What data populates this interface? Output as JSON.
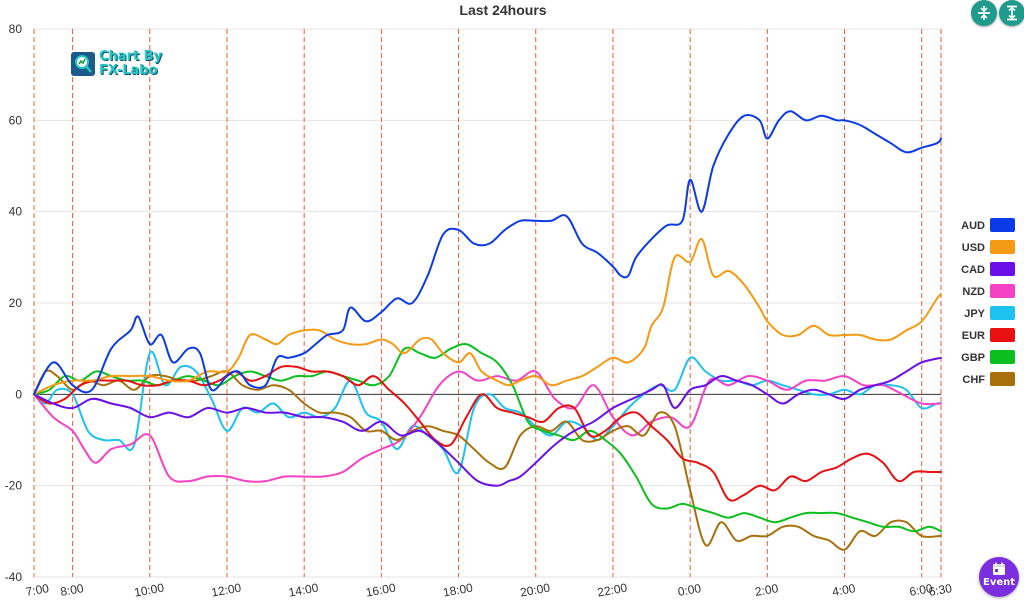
{
  "toolbar": {
    "collapse_icon": "collapse-vertical-icon",
    "expand_icon": "expand-vertical-icon",
    "event_icon": "calendar-icon",
    "event_label": "Event",
    "accent": "#1f9a8c",
    "event_color": "#7b2ee0"
  },
  "watermark": {
    "line1": "Chart By",
    "line2": "FX-Labo"
  },
  "chart_data": {
    "type": "line",
    "title": "Last 24hours",
    "xlabel": "",
    "ylabel": "",
    "ylim": [
      -40,
      80
    ],
    "yticks": [
      80,
      60,
      40,
      20,
      0,
      -20,
      -40
    ],
    "xlim": [
      0,
      23.5
    ],
    "x_tick_labels": [
      "7:00",
      "8:00",
      "10:00",
      "12:00",
      "14:00",
      "16:00",
      "18:00",
      "20:00",
      "22:00",
      "0:00",
      "2:00",
      "4:00",
      "6:00",
      "6:30"
    ],
    "x_tick_hours": [
      0,
      1,
      3,
      5,
      7,
      9,
      11,
      13,
      15,
      17,
      19,
      21,
      23,
      23.5
    ],
    "legend_position": "right",
    "series": [
      {
        "name": "AUD",
        "color": "#0b3be8",
        "x": [
          0,
          0.5,
          1,
          1.5,
          2,
          2.5,
          2.7,
          3,
          3.3,
          3.6,
          4,
          4.3,
          4.6,
          5,
          5.3,
          5.6,
          6,
          6.3,
          6.6,
          7,
          7.3,
          7.6,
          8,
          8.2,
          8.6,
          9,
          9.4,
          9.8,
          10.2,
          10.6,
          11,
          11.4,
          11.8,
          12.2,
          12.6,
          13,
          13.4,
          13.8,
          14.2,
          14.6,
          15,
          15.2,
          15.4,
          15.6,
          16,
          16.4,
          16.8,
          17,
          17.3,
          17.6,
          18,
          18.4,
          18.8,
          19,
          19.3,
          19.6,
          20,
          20.4,
          20.8,
          21,
          21.4,
          21.8,
          22.2,
          22.6,
          23,
          23.4,
          23.5
        ],
        "y": [
          0,
          7,
          2,
          1,
          10,
          14,
          17,
          11,
          13,
          7,
          10,
          9,
          1,
          4,
          5,
          2,
          2,
          8,
          8,
          9,
          11,
          13,
          14,
          19,
          16,
          18,
          21,
          20,
          26,
          35,
          36,
          33,
          33,
          36,
          38,
          38,
          38,
          39,
          33,
          31,
          28,
          26,
          26,
          30,
          34,
          37,
          38,
          47,
          40,
          50,
          57,
          61,
          60,
          56,
          60,
          62,
          60,
          61,
          60,
          60,
          59,
          57,
          55,
          53,
          54,
          55,
          56
        ]
      },
      {
        "name": "USD",
        "color": "#f59a14",
        "x": [
          0,
          0.5,
          1,
          1.5,
          2,
          2.5,
          3,
          3.5,
          4,
          4.5,
          5,
          5.3,
          5.6,
          6,
          6.3,
          6.6,
          7,
          7.4,
          7.8,
          8.2,
          8.6,
          9,
          9.3,
          9.6,
          10,
          10.3,
          10.6,
          11,
          11.3,
          11.6,
          12,
          12.3,
          12.6,
          13,
          13.4,
          13.8,
          14.2,
          14.6,
          15,
          15.4,
          15.8,
          16,
          16.3,
          16.6,
          17,
          17.3,
          17.6,
          18,
          18.4,
          18.8,
          19,
          19.4,
          19.8,
          20.2,
          20.6,
          21,
          21.4,
          21.8,
          22.2,
          22.6,
          23,
          23.4,
          23.5
        ],
        "y": [
          0,
          2,
          3,
          3,
          4,
          4,
          4,
          3,
          3,
          5,
          5,
          8,
          13,
          12,
          11,
          13,
          14,
          14,
          12,
          11,
          11,
          12,
          11,
          9,
          12,
          12,
          9,
          7,
          9,
          5,
          3,
          2,
          3,
          4,
          2,
          3,
          4,
          6,
          8,
          7,
          10,
          15,
          19,
          30,
          29,
          34,
          26,
          27,
          24,
          19,
          16,
          13,
          13,
          15,
          13,
          13,
          13,
          12,
          12,
          14,
          16,
          21,
          22
        ]
      },
      {
        "name": "CAD",
        "color": "#6a10e8",
        "x": [
          0,
          0.5,
          1,
          1.5,
          2,
          2.5,
          3,
          3.5,
          4,
          4.5,
          5,
          5.5,
          6,
          6.5,
          7,
          7.5,
          8,
          8.5,
          9,
          9.5,
          10,
          10.5,
          11,
          11.5,
          12,
          12.3,
          12.6,
          13,
          13.5,
          14,
          14.5,
          15,
          15.5,
          16,
          16.3,
          16.6,
          17,
          17.4,
          17.8,
          18.2,
          18.6,
          19,
          19.4,
          19.8,
          20.2,
          20.6,
          21,
          21.4,
          21.8,
          22.2,
          22.6,
          23,
          23.5
        ],
        "y": [
          0,
          -2,
          -3,
          -1,
          -2,
          -3,
          -5,
          -4,
          -5,
          -3,
          -4,
          -3,
          -4,
          -4,
          -5,
          -5,
          -6,
          -8,
          -6,
          -9,
          -8,
          -11,
          -15,
          -19,
          -20,
          -19,
          -18,
          -15,
          -11,
          -8,
          -6,
          -3,
          -1,
          1,
          2,
          -3,
          1,
          2,
          4,
          3,
          2,
          0,
          -2,
          0,
          1,
          0,
          -1,
          1,
          2,
          3,
          5,
          7,
          8
        ]
      },
      {
        "name": "NZD",
        "color": "#f542c4",
        "x": [
          0,
          0.5,
          1,
          1.3,
          1.6,
          2,
          2.5,
          3,
          3.5,
          4,
          4.5,
          5,
          5.5,
          6,
          6.5,
          7,
          7.5,
          8,
          8.5,
          9,
          9.5,
          10,
          10.5,
          11,
          11.5,
          12,
          12.5,
          13,
          13.5,
          14,
          14.5,
          15,
          15.5,
          16,
          16.5,
          17,
          17.5,
          18,
          18.5,
          19,
          19.5,
          20,
          20.5,
          21,
          21.5,
          22,
          22.5,
          23,
          23.5
        ],
        "y": [
          0,
          -5,
          -8,
          -12,
          -15,
          -12,
          -11,
          -9,
          -18,
          -19,
          -18,
          -18,
          -19,
          -19,
          -18,
          -18,
          -18,
          -17,
          -14,
          -12,
          -10,
          -5,
          2,
          5,
          3,
          4,
          3,
          5,
          -1,
          -3,
          2,
          -5,
          -9,
          -6,
          -5,
          -7,
          3,
          2,
          4,
          3,
          1,
          3,
          3,
          4,
          2,
          2,
          0,
          -2,
          -2
        ]
      },
      {
        "name": "JPY",
        "color": "#1ec2f0",
        "x": [
          0,
          0.3,
          0.6,
          1,
          1.4,
          1.8,
          2.2,
          2.6,
          3,
          3.4,
          3.8,
          4.2,
          4.6,
          5,
          5.4,
          5.8,
          6.2,
          6.6,
          7,
          7.4,
          7.8,
          8.2,
          8.6,
          9,
          9.4,
          9.8,
          10.2,
          10.6,
          11,
          11.4,
          11.8,
          12.2,
          12.6,
          13,
          13.4,
          13.8,
          14.2,
          14.6,
          15,
          15.4,
          15.8,
          16.2,
          16.6,
          17,
          17.4,
          17.8,
          18.2,
          18.6,
          19,
          19.4,
          19.8,
          20.2,
          20.6,
          21,
          21.4,
          21.8,
          22.2,
          22.6,
          23,
          23.4,
          23.5
        ],
        "y": [
          0,
          -2,
          1,
          0,
          -8,
          -10,
          -10,
          -11,
          9,
          2,
          6,
          5,
          -1,
          -8,
          -3,
          -4,
          -2,
          -5,
          -4,
          -5,
          -3,
          3,
          -4,
          -6,
          -12,
          -7,
          -9,
          -12,
          -17,
          -3,
          0,
          -3,
          -4,
          -7,
          -9,
          -6,
          -7,
          -10,
          -7,
          -3,
          0,
          2,
          1,
          8,
          5,
          3,
          3,
          2,
          3,
          2,
          1,
          0,
          0,
          1,
          0,
          2,
          2,
          1,
          -3,
          -2,
          -2
        ]
      },
      {
        "name": "EUR",
        "color": "#e81010",
        "x": [
          0,
          0.4,
          0.8,
          1.2,
          1.6,
          2,
          2.4,
          2.8,
          3.2,
          3.6,
          4,
          4.4,
          4.8,
          5.2,
          5.6,
          6,
          6.4,
          6.8,
          7.2,
          7.6,
          8,
          8.4,
          8.8,
          9.2,
          9.6,
          10,
          10.4,
          10.8,
          11.2,
          11.6,
          12,
          12.4,
          12.8,
          13.2,
          13.6,
          14,
          14.4,
          14.8,
          15.2,
          15.6,
          16,
          16.4,
          16.8,
          17.2,
          17.6,
          18,
          18.4,
          18.8,
          19.2,
          19.6,
          20,
          20.4,
          20.8,
          21.2,
          21.6,
          22,
          22.4,
          22.8,
          23.2,
          23.5
        ],
        "y": [
          0,
          -2,
          -1,
          2,
          3,
          3,
          3,
          2,
          2,
          3,
          3,
          2,
          3,
          5,
          3,
          4,
          6,
          6,
          5,
          5,
          4,
          2,
          4,
          1,
          -2,
          -6,
          -10,
          -11,
          -5,
          0,
          -3,
          -4,
          -5,
          -6,
          -3,
          -3,
          -9,
          -8,
          -5,
          -4,
          -7,
          -10,
          -14,
          -15,
          -17,
          -23,
          -22,
          -20,
          -21,
          -18,
          -19,
          -17,
          -16,
          -14,
          -13,
          -15,
          -19,
          -17,
          -17,
          -17
        ]
      },
      {
        "name": "GBP",
        "color": "#0bc01e",
        "x": [
          0,
          0.4,
          0.8,
          1.2,
          1.6,
          2,
          2.4,
          2.8,
          3.2,
          3.6,
          4,
          4.4,
          4.8,
          5.2,
          5.6,
          6,
          6.4,
          6.8,
          7.2,
          7.6,
          8,
          8.4,
          8.8,
          9.2,
          9.6,
          10,
          10.4,
          10.8,
          11.2,
          11.6,
          12,
          12.4,
          12.8,
          13.2,
          13.6,
          14,
          14.4,
          14.8,
          15.2,
          15.6,
          16,
          16.4,
          16.8,
          17.2,
          17.6,
          18,
          18.4,
          18.8,
          19.2,
          19.6,
          20,
          20.4,
          20.8,
          21.2,
          21.6,
          22,
          22.4,
          22.8,
          23.2,
          23.5
        ],
        "y": [
          0,
          1,
          4,
          3,
          5,
          4,
          3,
          3,
          2,
          3,
          4,
          3,
          2,
          4,
          5,
          4,
          3,
          4,
          4,
          5,
          4,
          3,
          2,
          4,
          10,
          9,
          8,
          10,
          11,
          9,
          7,
          2,
          -6,
          -8,
          -9,
          -10,
          -8,
          -10,
          -13,
          -18,
          -24,
          -25,
          -24,
          -25,
          -26,
          -27,
          -26,
          -27,
          -28,
          -27,
          -26,
          -26,
          -26,
          -27,
          -28,
          -29,
          -29,
          -30,
          -29,
          -30
        ]
      },
      {
        "name": "CHF",
        "color": "#a8700a",
        "x": [
          0,
          0.3,
          0.6,
          1,
          1.4,
          1.8,
          2.2,
          2.6,
          3,
          3.4,
          3.8,
          4.2,
          4.6,
          5,
          5.4,
          5.8,
          6.2,
          6.6,
          7,
          7.4,
          7.8,
          8.2,
          8.6,
          9,
          9.4,
          9.8,
          10.2,
          10.6,
          11,
          11.4,
          11.8,
          12.2,
          12.6,
          13,
          13.4,
          13.8,
          14.2,
          14.6,
          15,
          15.4,
          15.8,
          16.2,
          16.6,
          17,
          17.4,
          17.8,
          18.2,
          18.6,
          19,
          19.4,
          19.8,
          20.2,
          20.6,
          21,
          21.4,
          21.8,
          22.2,
          22.6,
          23,
          23.5
        ],
        "y": [
          0,
          5,
          4,
          1,
          3,
          2,
          3,
          1,
          4,
          4,
          3,
          3,
          4,
          5,
          2,
          1,
          2,
          1,
          -2,
          -4,
          -4,
          -5,
          -8,
          -8,
          -10,
          -8,
          -7,
          -8,
          -9,
          -12,
          -15,
          -16,
          -9,
          -7,
          -8,
          -6,
          -10,
          -10,
          -8,
          -7,
          -9,
          -4,
          -7,
          -21,
          -33,
          -28,
          -32,
          -31,
          -31,
          -29,
          -29,
          -31,
          -32,
          -34,
          -30,
          -31,
          -28,
          -28,
          -31,
          -31
        ]
      }
    ]
  }
}
